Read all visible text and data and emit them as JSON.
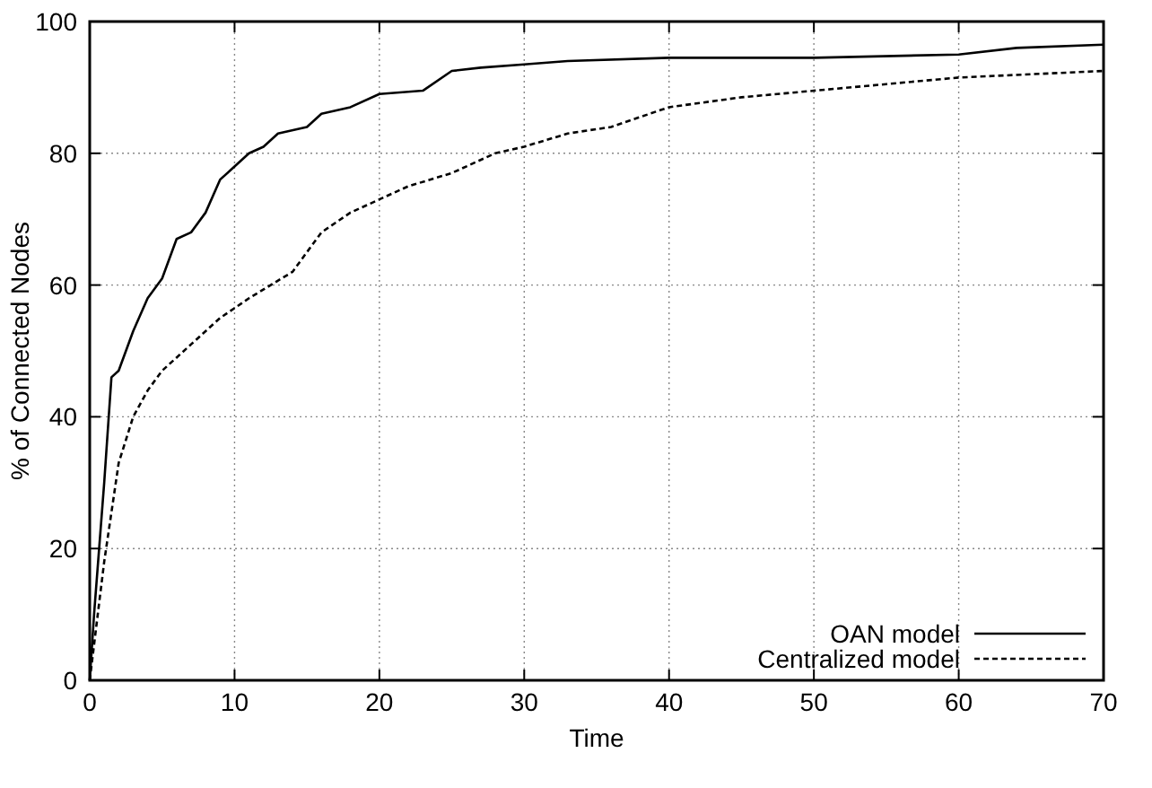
{
  "chart_data": {
    "type": "line",
    "xlabel": "Time",
    "ylabel": "% of Connected Nodes",
    "xlim": [
      0,
      70
    ],
    "ylim": [
      0,
      100
    ],
    "xticks": [
      0,
      10,
      20,
      30,
      40,
      50,
      60,
      70
    ],
    "yticks": [
      0,
      20,
      40,
      60,
      80,
      100
    ],
    "grid": true,
    "legend": "bottom right",
    "marker": "none",
    "series": [
      {
        "name": "OAN model",
        "color": "#000000",
        "line_style": "solid",
        "x": [
          0,
          0.3,
          1,
          1.5,
          2,
          3,
          4,
          5,
          6,
          7,
          8,
          9,
          10,
          11,
          12,
          13,
          15,
          16,
          18,
          20,
          23,
          25,
          27,
          30,
          33,
          40,
          50,
          60,
          64,
          70
        ],
        "values": [
          0,
          10,
          30,
          46,
          47,
          53,
          58,
          61,
          67,
          68,
          71,
          76,
          78,
          80,
          81,
          83,
          84,
          86,
          87,
          89,
          89.5,
          92.5,
          93,
          93.5,
          94,
          94.5,
          94.5,
          95,
          96,
          96.5
        ]
      },
      {
        "name": "Centralized model",
        "color": "#000000",
        "line_style": "dashed",
        "x": [
          0,
          1,
          2,
          3,
          4,
          5,
          7,
          9,
          11,
          14,
          16,
          18,
          20,
          22,
          25,
          28,
          30,
          33,
          36,
          40,
          45,
          50,
          55,
          60,
          65,
          70
        ],
        "values": [
          0,
          18,
          33,
          40,
          44,
          47,
          51,
          55,
          58,
          62,
          68,
          71,
          73,
          75,
          77,
          80,
          81,
          83,
          84,
          87,
          88.5,
          89.5,
          90.5,
          91.5,
          92,
          92.5
        ]
      }
    ]
  }
}
